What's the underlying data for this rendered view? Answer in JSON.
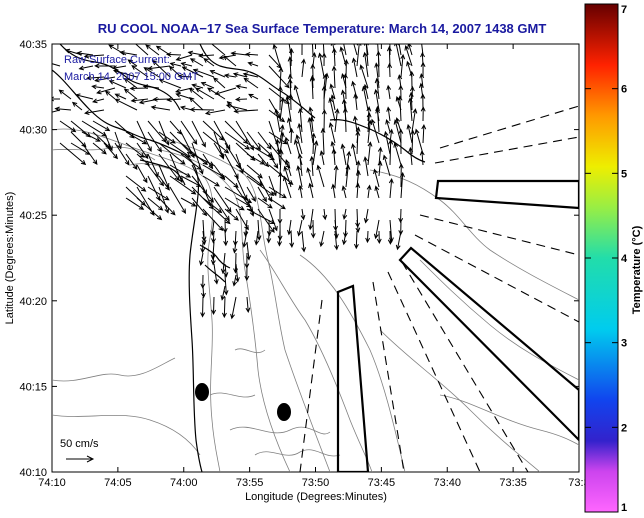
{
  "title": "RU COOL  NOAA−17  Sea Surface Temperature:  March 14, 2007 1438 GMT",
  "overlay": {
    "line1": "Raw Surface Current:",
    "line2": "March 14, 2007 15:00 GMT"
  },
  "scale_label": "50 cm/s",
  "axes": {
    "xlabel": "Longitude (Degrees:Minutes)",
    "ylabel": "Latitude (Degrees:Minutes)",
    "xticks": [
      "74:10",
      "74:05",
      "74:00",
      "73:55",
      "73:50",
      "73:45",
      "73:40",
      "73:35",
      "73:3"
    ],
    "yticks": [
      "40:35",
      "40:30",
      "40:25",
      "40:20",
      "40:15",
      "40:10"
    ]
  },
  "colorbar": {
    "label": "Temperature (°C)",
    "ticks": [
      "7",
      "6",
      "5",
      "4",
      "3",
      "2",
      "1"
    ],
    "range": [
      1,
      7
    ]
  },
  "colors": {
    "title": "#1a1aa0",
    "contour": "#7a7a7a",
    "coast": "#000000"
  }
}
